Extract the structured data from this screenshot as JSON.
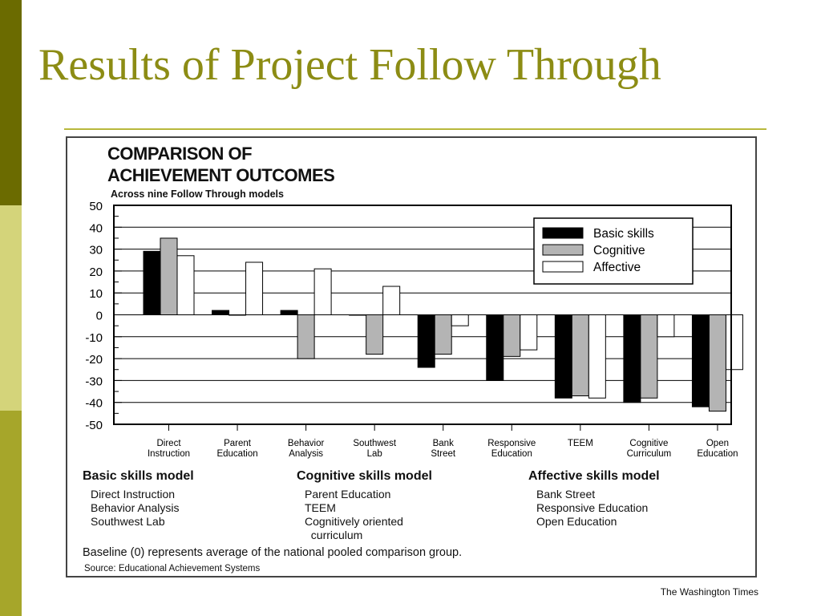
{
  "slide": {
    "title": "Results of Project Follow Through",
    "colors": {
      "accent": "#8c8c14",
      "sidebar_dark": "#6b6b00",
      "sidebar_light": "#d4d47a",
      "sidebar_mid": "#a6a62a"
    }
  },
  "chart": {
    "heading_line1": "COMPARISON OF",
    "heading_line2": "ACHIEVEMENT OUTCOMES",
    "subtitle": "Across nine Follow Through models"
  },
  "chart_data": {
    "type": "bar",
    "categories": [
      [
        "Direct",
        "Instruction"
      ],
      [
        "Parent",
        "Education"
      ],
      [
        "Behavior",
        "Analysis"
      ],
      [
        "Southwest",
        "Lab"
      ],
      [
        "Bank",
        "Street"
      ],
      [
        "Responsive",
        "Education"
      ],
      [
        "TEEM"
      ],
      [
        "Cognitive",
        "Curriculum"
      ],
      [
        "Open",
        "Education"
      ]
    ],
    "series": [
      {
        "name": "Basic skills",
        "color": "#000000",
        "values": [
          29,
          2,
          2,
          0,
          -24,
          -30,
          -38,
          -40,
          -42
        ]
      },
      {
        "name": "Cognitive",
        "color": "#b4b4b4",
        "values": [
          35,
          0,
          -20,
          -18,
          -18,
          -19,
          -37,
          -38,
          -44
        ]
      },
      {
        "name": "Affective",
        "color": "#ffffff",
        "values": [
          27,
          24,
          21,
          13,
          -5,
          -16,
          -38,
          -10,
          -25
        ]
      }
    ],
    "ylim": [
      -50,
      50
    ],
    "yticks": [
      50,
      40,
      30,
      20,
      10,
      0,
      -10,
      -20,
      -30,
      -40,
      -50
    ],
    "grid": true,
    "legend_position": "top-right"
  },
  "models": {
    "basic": {
      "heading": "Basic skills model",
      "items": [
        "Direct Instruction",
        "Behavior Analysis",
        "Southwest Lab"
      ]
    },
    "cognitive": {
      "heading": "Cognitive skills model",
      "items": [
        "Parent Education",
        "TEEM",
        "Cognitively oriented\n  curriculum"
      ]
    },
    "affective": {
      "heading": "Affective skills model",
      "items": [
        "Bank Street",
        "Responsive Education",
        "Open Education"
      ]
    }
  },
  "notes": {
    "baseline": "Baseline (0) represents average of the national pooled comparison group.",
    "source": "Source: Educational Achievement Systems",
    "credit": "The Washington Times"
  }
}
